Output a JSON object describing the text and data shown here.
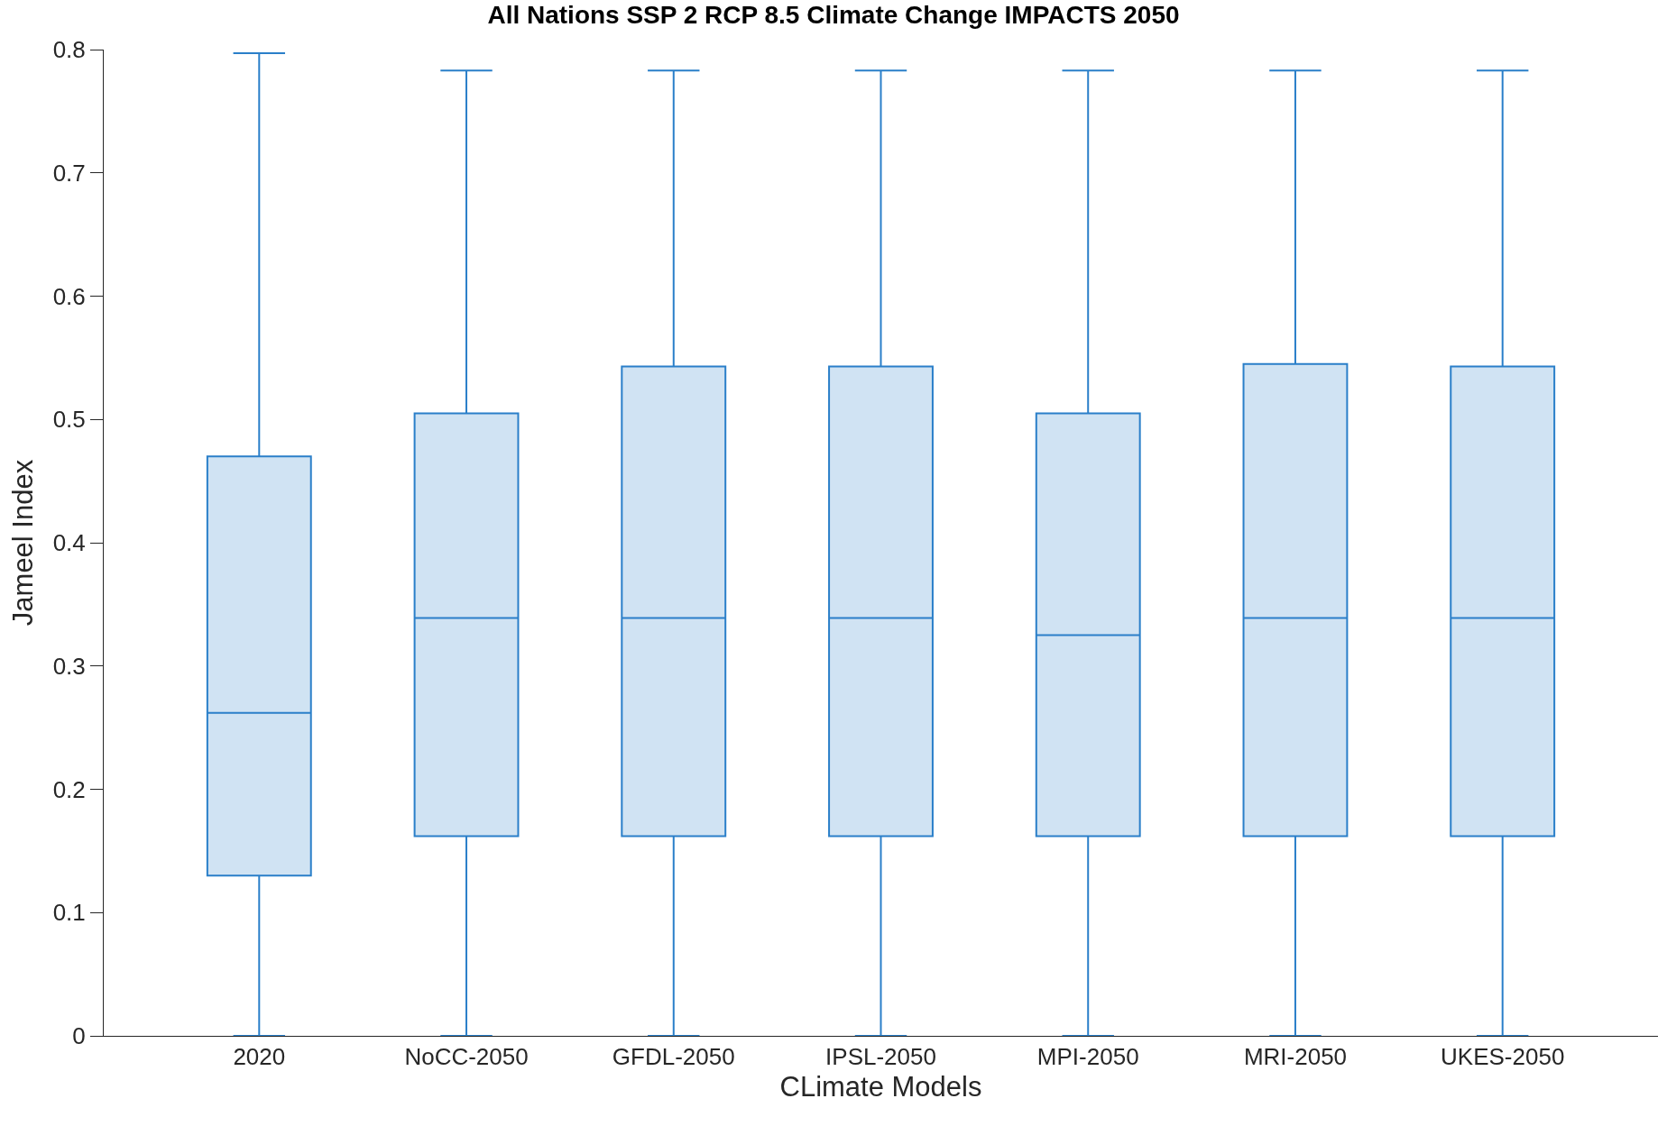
{
  "chart_data": {
    "type": "box",
    "title": "All Nations SSP 2 RCP 8.5 Climate Change IMPACTS 2050",
    "xlabel": "CLimate Models",
    "ylabel": "Jameel Index",
    "categories": [
      "2020",
      "NoCC-2050",
      "GFDL-2050",
      "IPSL-2050",
      "MPI-2050",
      "MRI-2050",
      "UKES-2050"
    ],
    "series": [
      {
        "color": "#2a7fc9",
        "boxes": [
          {
            "low": 0,
            "q1": 0.13,
            "median": 0.262,
            "q3": 0.47,
            "high": 0.797
          },
          {
            "low": 0,
            "q1": 0.162,
            "median": 0.339,
            "q3": 0.505,
            "high": 0.783
          },
          {
            "low": 0,
            "q1": 0.162,
            "median": 0.339,
            "q3": 0.543,
            "high": 0.783
          },
          {
            "low": 0,
            "q1": 0.162,
            "median": 0.339,
            "q3": 0.543,
            "high": 0.783
          },
          {
            "low": 0,
            "q1": 0.162,
            "median": 0.325,
            "q3": 0.505,
            "high": 0.783
          },
          {
            "low": 0,
            "q1": 0.162,
            "median": 0.339,
            "q3": 0.545,
            "high": 0.783
          },
          {
            "low": 0,
            "q1": 0.162,
            "median": 0.339,
            "q3": 0.543,
            "high": 0.783
          }
        ]
      }
    ],
    "ylim": [
      0,
      0.8
    ],
    "yticks": [
      0,
      0.1,
      0.2,
      0.3,
      0.4,
      0.5,
      0.6,
      0.7,
      0.8
    ],
    "grid": false
  }
}
